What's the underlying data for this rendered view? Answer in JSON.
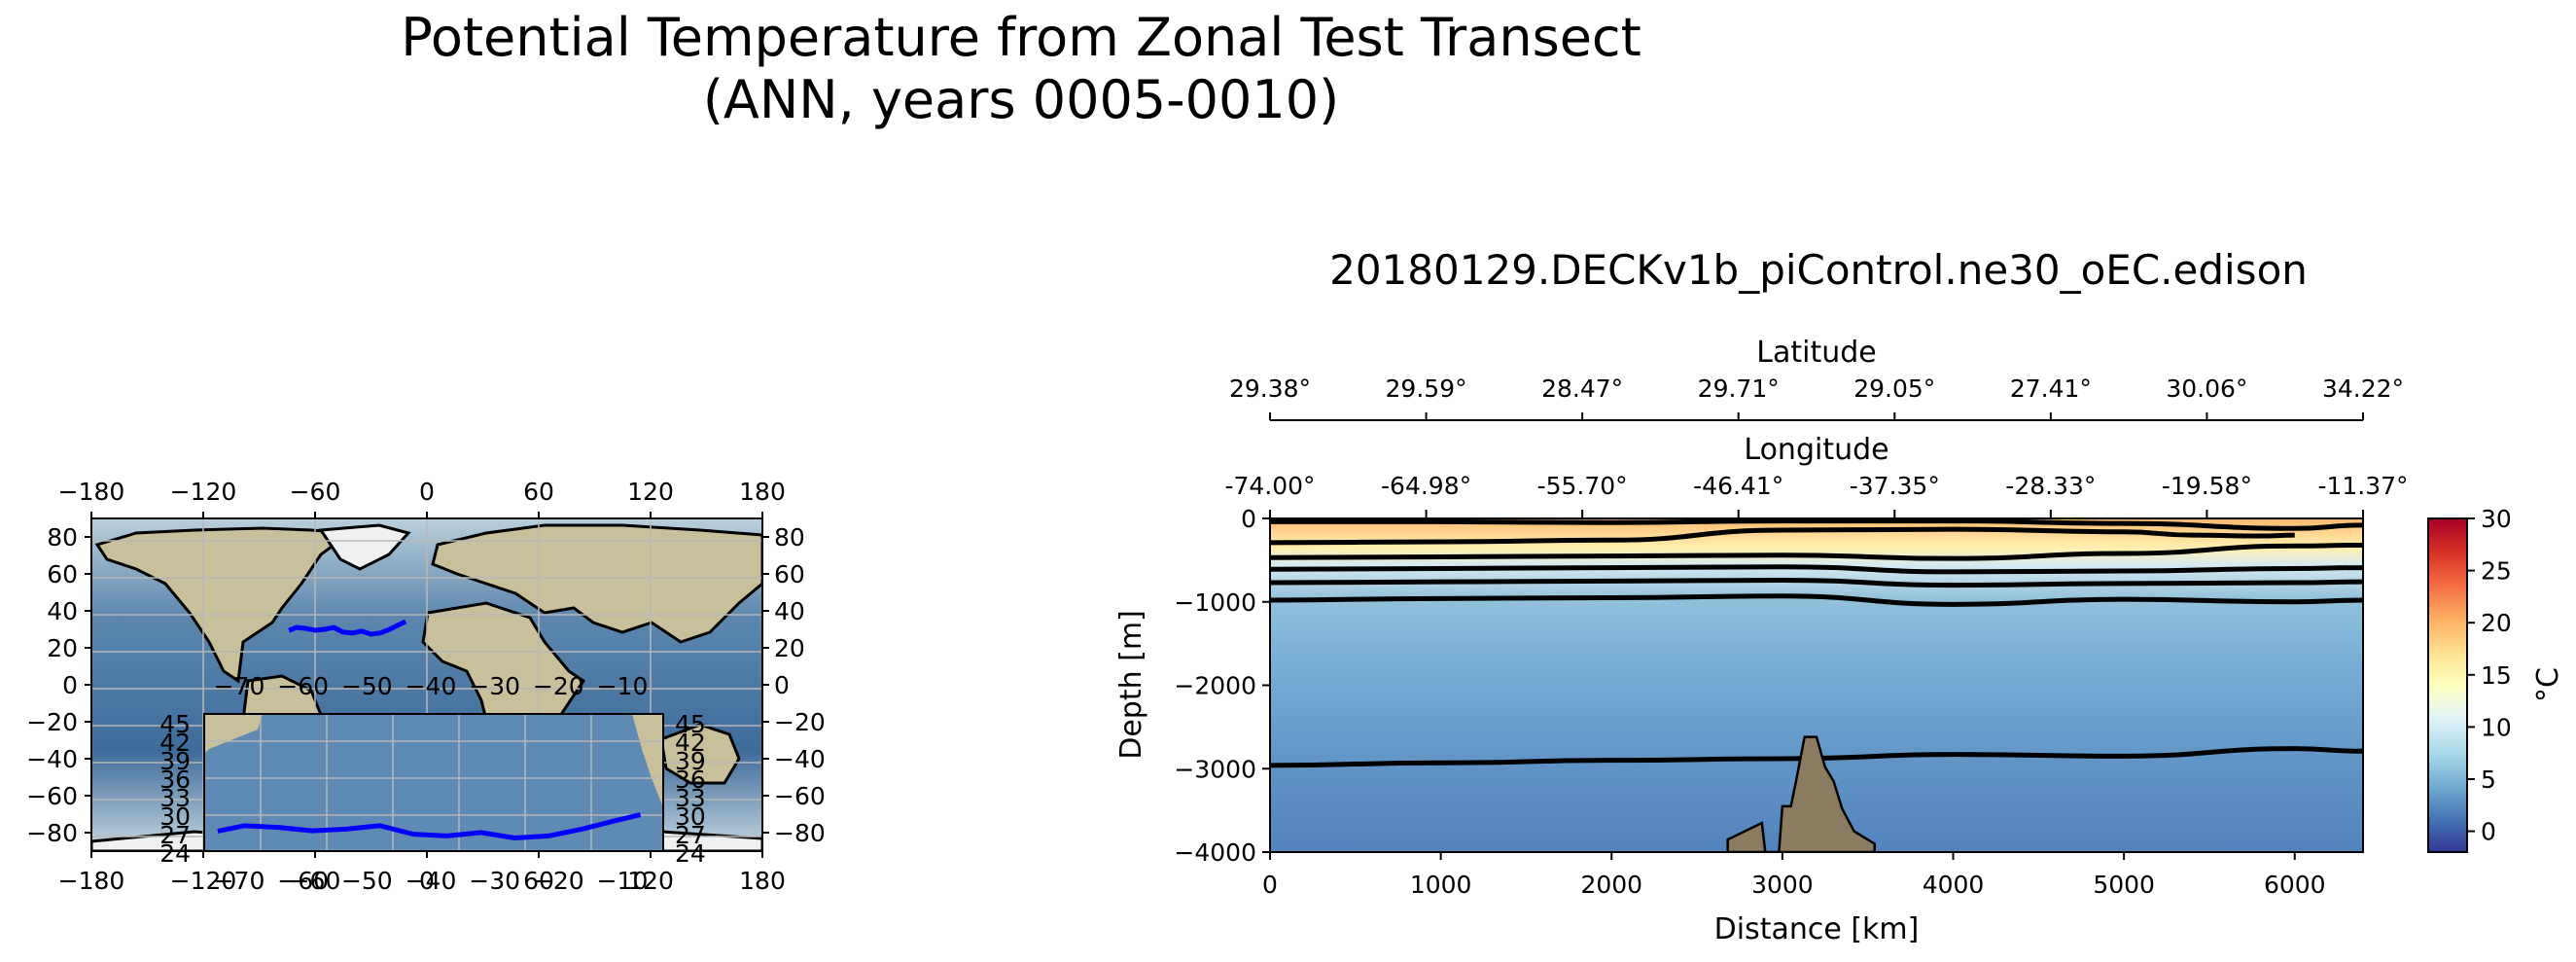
{
  "figure": {
    "title_line1": "Potential Temperature from Zonal Test Transect",
    "title_line2": "(ANN, years 0005-0010)"
  },
  "colors": {
    "transect": "#0000ff",
    "contour": "#000000",
    "bathymetry": "#8b7b60",
    "grid": "#b8b8b8"
  },
  "chart_data": [
    {
      "id": "map",
      "type": "line",
      "projection": "PlateCarree",
      "title": "",
      "xlim": [
        -180,
        180
      ],
      "ylim": [
        -90,
        90
      ],
      "xticks": [
        -180,
        -120,
        -60,
        0,
        60,
        120,
        180
      ],
      "yticks": [
        80,
        60,
        40,
        20,
        0,
        -20,
        -40,
        -60,
        -80
      ],
      "grid": true,
      "background": "earth relief image with coastlines",
      "series": [
        {
          "x": [
            -74.0,
            -70.0,
            -65.0,
            -60.0,
            -55.0,
            -50.0,
            -45.0,
            -40.0,
            -35.0,
            -30.0,
            -25.0,
            -20.0,
            -15.0,
            -11.37
          ],
          "y": [
            29.4,
            31.0,
            30.5,
            29.5,
            30.0,
            31.0,
            28.5,
            28.0,
            29.0,
            27.4,
            28.0,
            30.0,
            32.5,
            34.2
          ]
        }
      ],
      "inset": {
        "xticks": [
          -70,
          -60,
          -50,
          -40,
          -30,
          -20,
          -10
        ],
        "yticks": [
          45,
          42,
          39,
          36,
          33,
          30,
          27,
          24
        ],
        "xlim": [
          -76,
          -8
        ],
        "ylim": [
          23,
          46
        ],
        "clipped": true
      }
    },
    {
      "id": "transect",
      "type": "contour",
      "title": "20180129.DECKv1b_piControl.ne30_oEC.edison",
      "xlabel": "Distance [km]",
      "ylabel": "Depth [m]",
      "xlim": [
        0,
        6400
      ],
      "ylim": [
        -4000,
        0
      ],
      "xticks": [
        0,
        1000,
        2000,
        3000,
        4000,
        5000,
        6000
      ],
      "yticks": [
        0,
        -1000,
        -2000,
        -3000,
        -4000
      ],
      "top_axes": [
        {
          "label": "Latitude",
          "ticks": [
            "29.38°",
            "29.59°",
            "28.47°",
            "29.71°",
            "29.05°",
            "27.41°",
            "30.06°",
            "34.22°"
          ]
        },
        {
          "label": "Longitude",
          "ticks": [
            "-74.00°",
            "-64.98°",
            "-55.70°",
            "-46.41°",
            "-37.35°",
            "-28.33°",
            "-19.58°",
            "-11.37°"
          ]
        }
      ],
      "contour_levels": [
        {
          "x": [
            0,
            1000,
            2000,
            3000,
            4000,
            5000,
            6000,
            6400
          ],
          "depth": [
            -2960,
            -2930,
            -2900,
            -2880,
            -2830,
            -2850,
            -2760,
            -2790
          ]
        },
        {
          "x": [
            0,
            1000,
            2000,
            3000,
            4000,
            5000,
            6000,
            6400
          ],
          "depth": [
            -980,
            -960,
            -950,
            -930,
            -1030,
            -970,
            -1000,
            -980
          ]
        },
        {
          "x": [
            0,
            1000,
            2000,
            3000,
            4000,
            5000,
            6000,
            6400
          ],
          "depth": [
            -770,
            -760,
            -750,
            -740,
            -800,
            -780,
            -770,
            -760
          ]
        },
        {
          "x": [
            0,
            1000,
            2000,
            3000,
            4000,
            5000,
            6000,
            6400
          ],
          "depth": [
            -610,
            -600,
            -590,
            -580,
            -640,
            -630,
            -600,
            -590
          ]
        },
        {
          "x": [
            0,
            1000,
            2000,
            3000,
            4000,
            5000,
            6000,
            6400
          ],
          "depth": [
            -470,
            -460,
            -450,
            -440,
            -480,
            -420,
            -330,
            -320
          ]
        },
        {
          "x": [
            0,
            1000,
            2000,
            3000,
            4000,
            5000,
            5400,
            5800,
            6000
          ],
          "depth": [
            -290,
            -280,
            -260,
            -140,
            -130,
            -160,
            -200,
            -210,
            -200
          ]
        },
        {
          "x": [
            0,
            1000,
            2000,
            3000,
            4000,
            5000,
            6000,
            6400
          ],
          "depth": [
            -40,
            -40,
            -50,
            -30,
            -30,
            -60,
            -120,
            -80
          ]
        }
      ],
      "colorbar": {
        "label": "°C",
        "range": [
          -2,
          30
        ],
        "ticks": [
          30,
          25,
          20,
          15,
          10,
          5,
          0
        ],
        "cmap": "RdYlBu_r"
      },
      "bathymetry": {
        "x": [
          2680,
          2880,
          2900,
          2980,
          3000,
          3050,
          3080,
          3130,
          3200,
          3250,
          3300,
          3350,
          3420,
          3540
        ],
        "depth": [
          -3850,
          -3650,
          -4000,
          -4000,
          -3450,
          -3450,
          -3150,
          -2620,
          -2620,
          -2980,
          -3150,
          -3480,
          -3750,
          -3900
        ]
      }
    }
  ]
}
